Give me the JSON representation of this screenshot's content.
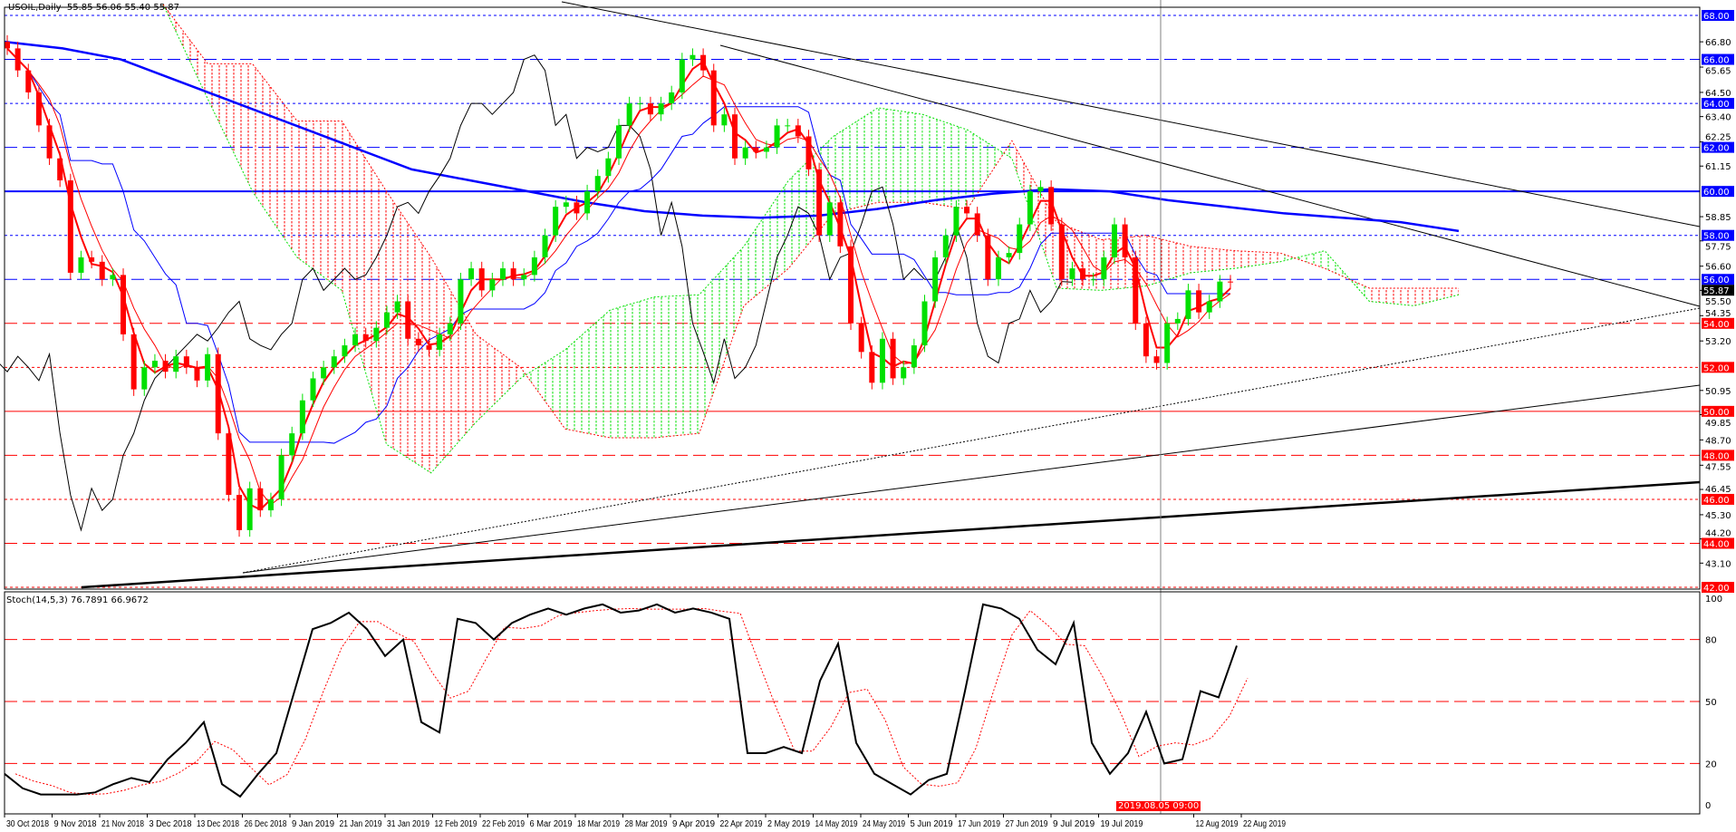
{
  "header": {
    "symbol": "USOIL,Daily",
    "ohlc": "55.85 56.06 55.40 55.87"
  },
  "stoch_header": {
    "label": "Stoch(14,5,3) 76.7891 66.9672"
  },
  "crosshair": {
    "label": "2019.08.05 09:00",
    "color": "#ff0000"
  },
  "colors": {
    "up": "#00e000",
    "down": "#ff0000",
    "ma_slow": "#0000ff",
    "chikou": "#000000",
    "cloud_bull": "#00e000",
    "cloud_bear": "#ff0000"
  },
  "chart_data": [
    {
      "type": "candlestick",
      "title": "USOIL,Daily",
      "ylim": [
        42,
        68
      ],
      "close": [
        66.5,
        65.5,
        64.5,
        63,
        61.5,
        60.5,
        56.3,
        57,
        56.8,
        56,
        56.2,
        53.5,
        51,
        52,
        52.3,
        51.8,
        52.5,
        52,
        51.4,
        52.6,
        49,
        46.2,
        44.6,
        46.5,
        45.5,
        46,
        48,
        49,
        50.5,
        51.5,
        52,
        52.5,
        53,
        53.5,
        53.2,
        53.8,
        54.5,
        55,
        53.3,
        53,
        52.8,
        53.5,
        54,
        56,
        56.5,
        55.5,
        56,
        56.5,
        56,
        56.2,
        57,
        58,
        59.3,
        59.5,
        59,
        60,
        60.7,
        61.5,
        63,
        64,
        64,
        63.5,
        64,
        64.5,
        66,
        66.2,
        65.5,
        63,
        63.5,
        61.5,
        62,
        61.8,
        62,
        63,
        63,
        62.5,
        61,
        58,
        59.5,
        57.5,
        54,
        52.7,
        51.3,
        53.3,
        51.5,
        52,
        53,
        55,
        57,
        58,
        59.3,
        59,
        58,
        56,
        57,
        57.2,
        58.5,
        60,
        60.2,
        58.5,
        56,
        56.5,
        56,
        56,
        57,
        58.5,
        57,
        54,
        52.5,
        52.2,
        54,
        54.2,
        55.5,
        54.5,
        55,
        55.9,
        55.87
      ],
      "ma_slow": [
        66.8,
        66.5,
        66,
        65,
        64,
        63,
        62,
        61,
        60.5,
        60,
        59.5,
        59.1,
        58.9,
        58.8,
        58.9,
        59.2,
        59.6,
        59.9,
        60.1,
        60,
        59.6,
        59.3,
        59,
        58.8,
        58.6,
        58.2
      ],
      "ichimoku": {
        "span_a": [
          68.5,
          64.2,
          60,
          57,
          55.5,
          48.5,
          47.2,
          49.5,
          51.5,
          52.8,
          54.6,
          55.2,
          55.3,
          57.5,
          60.5,
          62.5,
          63.8,
          63.5,
          62.8,
          61.5,
          55.6,
          55.5,
          55.7,
          56.3,
          56.5,
          56.8,
          57.3,
          55,
          54.8,
          55.3
        ],
        "span_b": [
          68.5,
          65.8,
          65.8,
          63.2,
          63.2,
          60,
          57,
          53.5,
          52,
          49.2,
          48.8,
          48.8,
          49,
          54.8,
          56.5,
          59,
          59.5,
          59.5,
          59.2,
          62.3,
          58.6,
          57.8,
          58,
          57.5,
          57.3,
          57.2,
          56.5,
          55.6,
          55.6,
          55.6
        ]
      },
      "levels": [
        {
          "value": 68,
          "label": "68.00",
          "color": "#0000ff",
          "style": "dotted"
        },
        {
          "value": 66,
          "label": "66.00",
          "color": "#0000ff",
          "style": "dashed"
        },
        {
          "value": 64,
          "label": "64.00",
          "color": "#0000ff",
          "style": "dotted"
        },
        {
          "value": 62,
          "label": "62.00",
          "color": "#0000ff",
          "style": "dashed"
        },
        {
          "value": 60,
          "label": "60.00",
          "color": "#0000ff",
          "style": "solid"
        },
        {
          "value": 58,
          "label": "58.00",
          "color": "#0000ff",
          "style": "dotted"
        },
        {
          "value": 56,
          "label": "56.00",
          "color": "#0000ff",
          "style": "dashed"
        },
        {
          "value": 54,
          "label": "54.00",
          "color": "#ff0000",
          "style": "dashed"
        },
        {
          "value": 52,
          "label": "52.00",
          "color": "#ff0000",
          "style": "dotted"
        },
        {
          "value": 50,
          "label": "50.00",
          "color": "#ff0000",
          "style": "solid"
        },
        {
          "value": 48,
          "label": "48.00",
          "color": "#ff0000",
          "style": "dashed"
        },
        {
          "value": 46,
          "label": "46.00",
          "color": "#ff0000",
          "style": "dotted"
        },
        {
          "value": 44,
          "label": "44.00",
          "color": "#ff0000",
          "style": "dashed"
        },
        {
          "value": 42,
          "label": "42.00",
          "color": "#ff0000",
          "style": "dotted"
        }
      ],
      "current_price": {
        "value": 55.87,
        "label": "55.87"
      },
      "yticks": [
        "66.80",
        "65.65",
        "64.50",
        "63.40",
        "62.25",
        "61.15",
        "58.85",
        "57.75",
        "56.60",
        "55.50",
        "54.35",
        "53.20",
        "50.95",
        "49.85",
        "48.70",
        "47.55",
        "46.45",
        "45.30",
        "44.20",
        "43.10"
      ],
      "xticks": [
        "30 Oct 2018",
        "9 Nov 2018",
        "21 Nov 2018",
        "3 Dec 2018",
        "13 Dec 2018",
        "26 Dec 2018",
        "9 Jan 2019",
        "21 Jan 2019",
        "31 Jan 2019",
        "12 Feb 2019",
        "22 Feb 2019",
        "6 Mar 2019",
        "18 Mar 2019",
        "28 Mar 2019",
        "9 Apr 2019",
        "22 Apr 2019",
        "2 May 2019",
        "14 May 2019",
        "24 May 2019",
        "5 Jun 2019",
        "17 Jun 2019",
        "27 Jun 2019",
        "9 Jul 2019",
        "19 Jul 2019",
        "",
        "12 Aug 2019",
        "22 Aug 2019"
      ]
    },
    {
      "type": "line",
      "title": "Stoch(14,5,3)",
      "ylim": [
        0,
        100
      ],
      "yticks": [
        "100",
        "80",
        "50",
        "20",
        "0"
      ],
      "levels": [
        80,
        50,
        20
      ],
      "k": [
        15,
        8,
        5,
        5,
        5,
        6,
        10,
        13,
        11,
        22,
        30,
        40,
        10,
        4,
        15,
        25,
        55,
        85,
        88,
        93,
        85,
        72,
        80,
        40,
        35,
        90,
        88,
        80,
        88,
        92,
        95,
        92,
        95,
        97,
        93,
        94,
        97,
        93,
        95,
        93,
        90,
        25,
        25,
        28,
        25,
        60,
        78,
        30,
        15,
        10,
        5,
        12,
        15,
        55,
        97,
        95,
        90,
        75,
        68,
        88,
        30,
        15,
        25,
        45,
        20,
        22,
        55,
        52,
        77
      ]
    }
  ]
}
